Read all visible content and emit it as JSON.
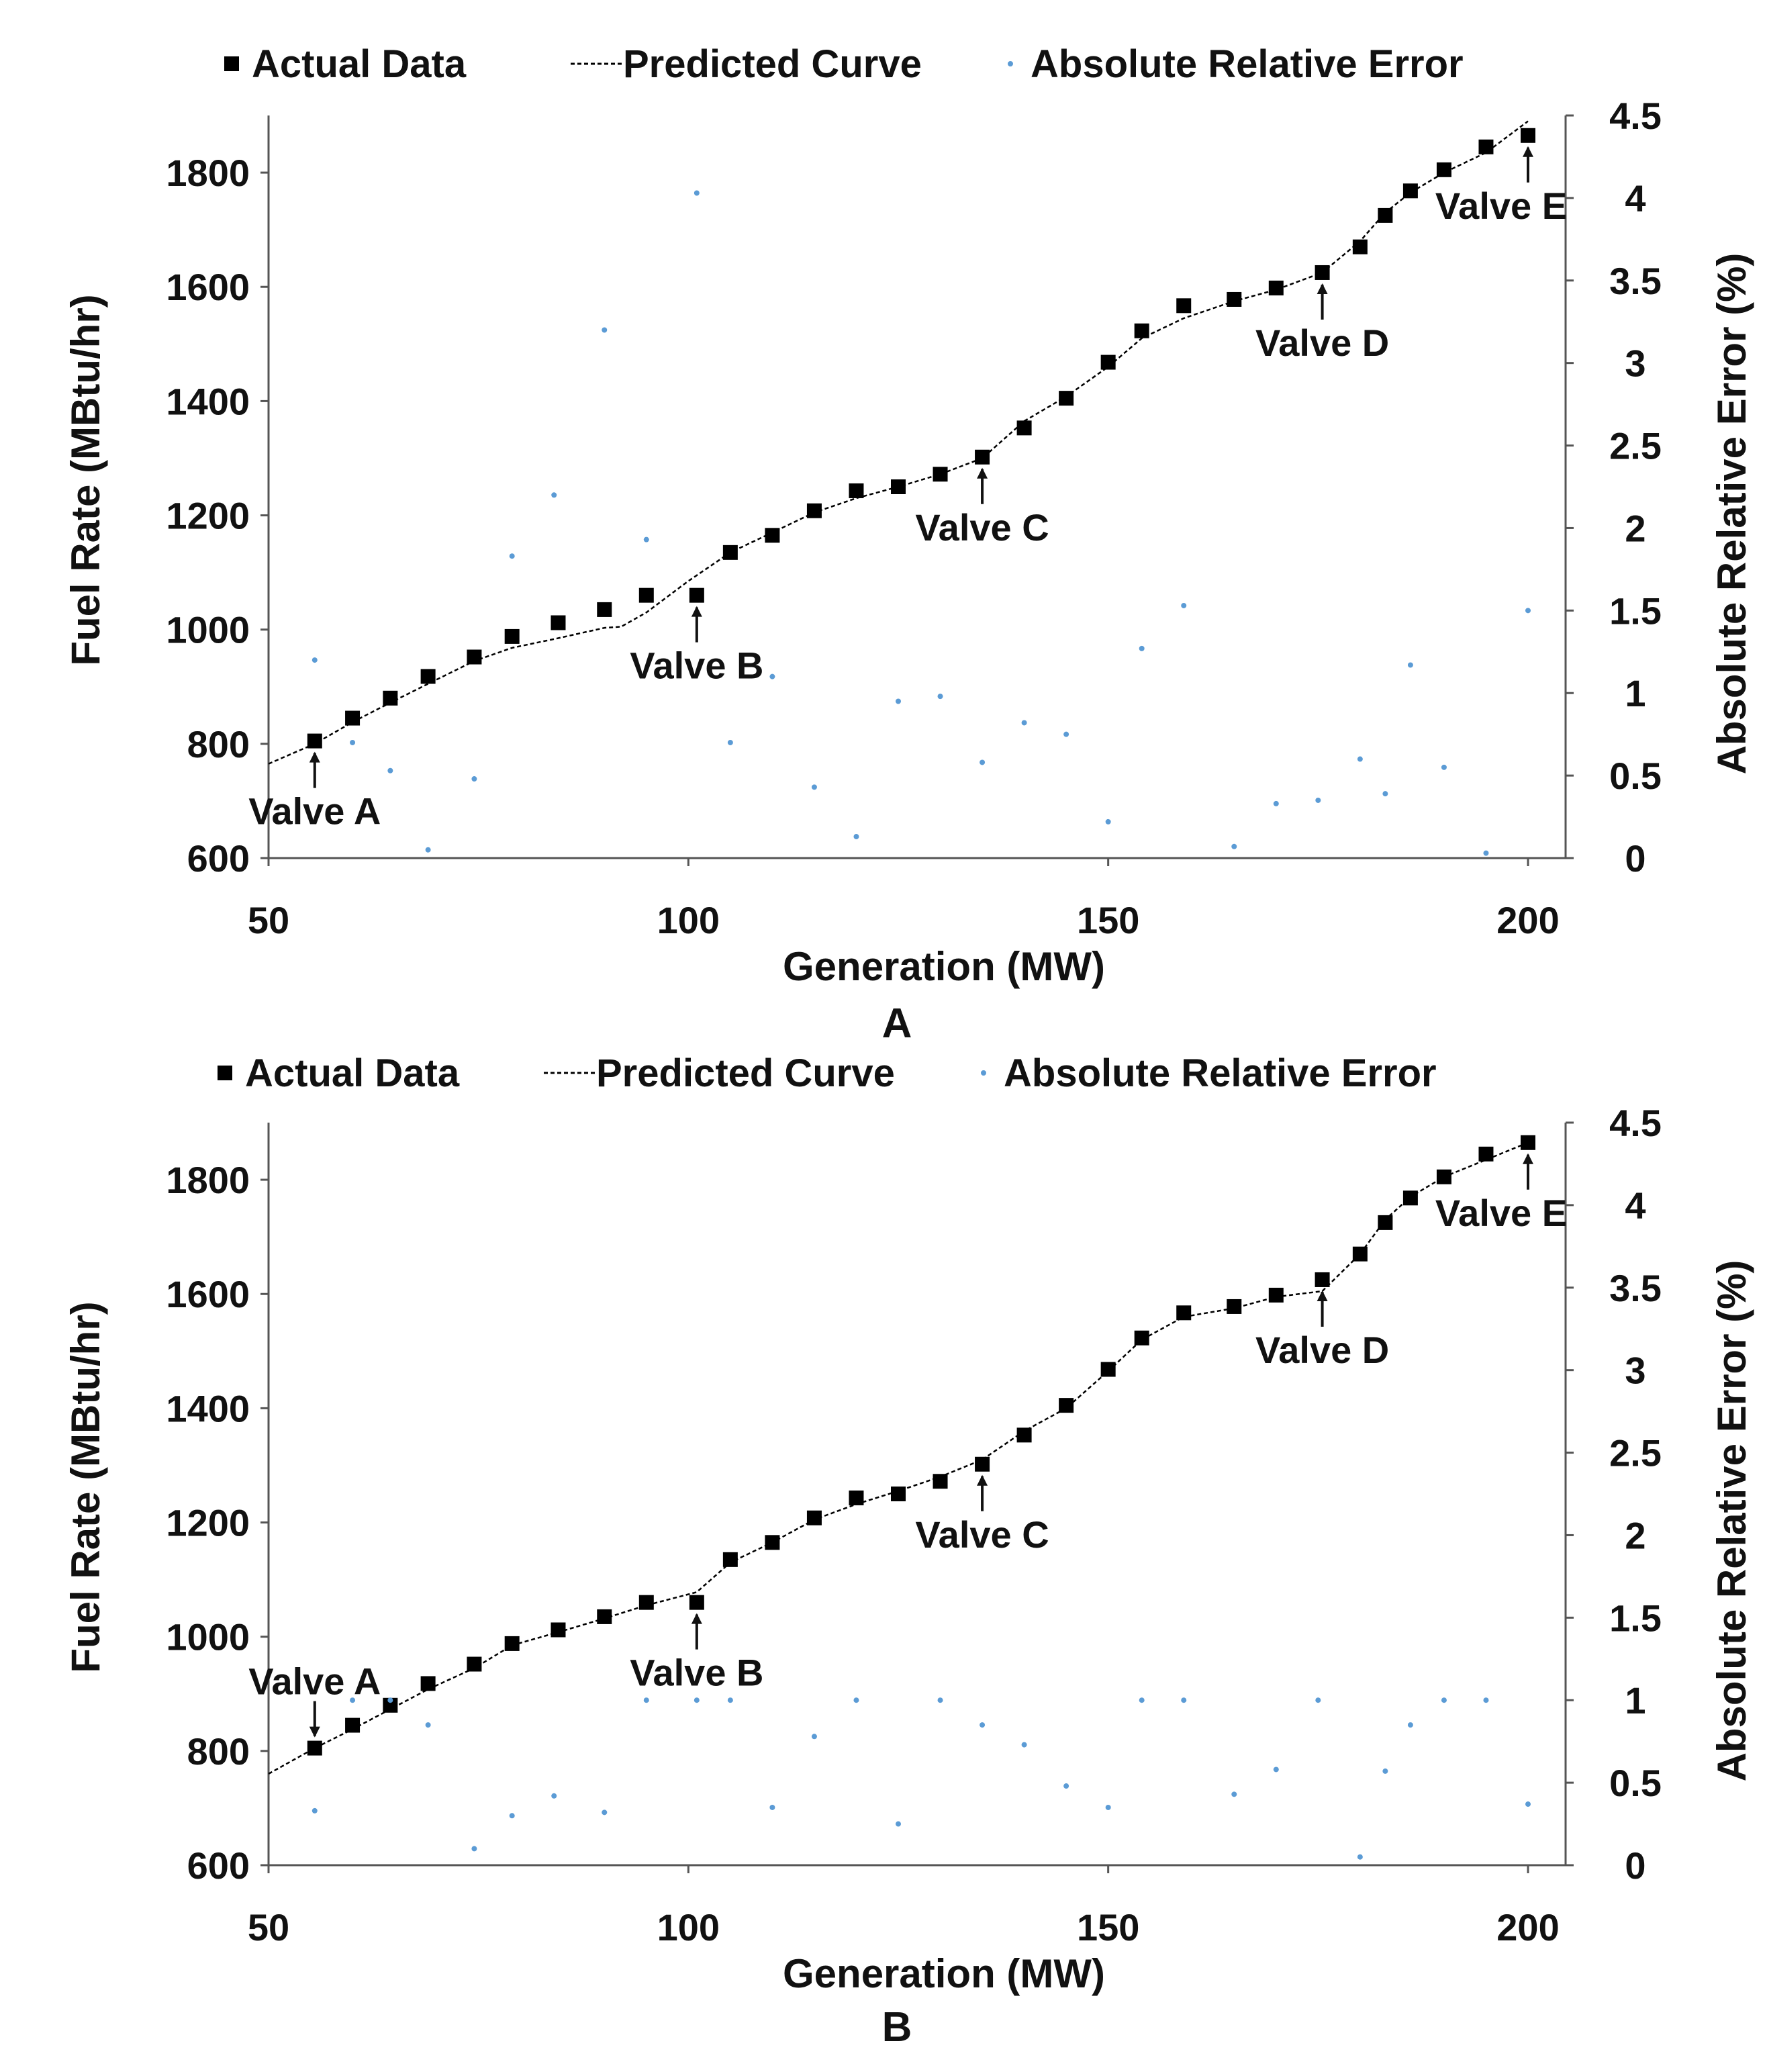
{
  "chart_data": [
    {
      "type": "scatter",
      "panel_label": "A",
      "legend_position": "top",
      "legend": [
        {
          "name": "Actual Data",
          "marker": "square",
          "color": "#000000"
        },
        {
          "name": "Predicted Curve",
          "marker": "dashed-line",
          "color": "#000000"
        },
        {
          "name": "Absolute Relative Error",
          "marker": "dot",
          "color": "#5b9bd5"
        }
      ],
      "xlabel": "Generation (MW)",
      "ylabel": "Fuel Rate (MBtu/hr)",
      "y2label": "Absolute Relative Error (%)",
      "xlim": [
        50,
        205
      ],
      "ylim": [
        600,
        1900
      ],
      "y2lim": [
        0,
        4.5
      ],
      "xticks": [
        50,
        100,
        150,
        200
      ],
      "yticks": [
        600,
        800,
        1000,
        1200,
        1400,
        1600,
        1800
      ],
      "y2ticks": [
        0,
        0.5,
        1,
        1.5,
        2,
        2.5,
        3,
        3.5,
        4,
        4.5
      ],
      "grid": false,
      "series": [
        {
          "name": "Actual Data",
          "x": [
            55.5,
            60,
            64.5,
            69,
            74.5,
            79,
            84.5,
            90,
            95,
            101,
            105,
            110,
            115,
            120,
            125,
            130,
            135,
            140,
            145,
            150,
            154,
            159,
            165,
            170,
            175.5,
            180,
            183,
            186,
            190,
            195,
            200
          ],
          "y": [
            805,
            845,
            880,
            918,
            952,
            988,
            1012,
            1035,
            1060,
            1060,
            1135,
            1165,
            1208,
            1243,
            1250,
            1272,
            1302,
            1353,
            1405,
            1468,
            1523,
            1567,
            1578,
            1598,
            1625,
            1670,
            1725,
            1768,
            1805,
            1845,
            1865
          ]
        },
        {
          "name": "Predicted Curve",
          "x": [
            50,
            55.5,
            60,
            64.5,
            69,
            74.5,
            79,
            84.5,
            90,
            92,
            95,
            100,
            105,
            110,
            115,
            120,
            125,
            130,
            135,
            140,
            145,
            150,
            154,
            159,
            165,
            170,
            175.5,
            180,
            183,
            186,
            190,
            195,
            200
          ],
          "y": [
            765,
            800,
            838,
            872,
            905,
            945,
            968,
            985,
            1003,
            1005,
            1030,
            1085,
            1135,
            1170,
            1205,
            1230,
            1250,
            1272,
            1300,
            1365,
            1408,
            1460,
            1510,
            1545,
            1575,
            1595,
            1625,
            1680,
            1730,
            1765,
            1800,
            1835,
            1890
          ]
        },
        {
          "name": "Absolute Relative Error",
          "axis": "right",
          "x": [
            55.5,
            60,
            64.5,
            69,
            74.5,
            79,
            84,
            90,
            95,
            101,
            105,
            110,
            115,
            120,
            125,
            130,
            135,
            140,
            145,
            150,
            154,
            159,
            165,
            170,
            175,
            180,
            183,
            186,
            190,
            195,
            200
          ],
          "y": [
            1.2,
            0.7,
            0.53,
            0.05,
            0.48,
            1.83,
            2.2,
            3.2,
            1.93,
            4.03,
            0.7,
            1.1,
            0.43,
            0.13,
            0.95,
            0.98,
            0.58,
            0.82,
            0.75,
            0.22,
            1.27,
            1.53,
            0.07,
            0.33,
            0.35,
            0.6,
            0.39,
            1.17,
            0.55,
            0.03,
            1.5
          ]
        }
      ],
      "annotations": [
        {
          "text": "Valve A",
          "x": 55.5,
          "y": 805,
          "arrow": "up"
        },
        {
          "text": "Valve B",
          "x": 101,
          "y": 1060,
          "arrow": "up"
        },
        {
          "text": "Valve C",
          "x": 135,
          "y": 1302,
          "arrow": "up"
        },
        {
          "text": "Valve D",
          "x": 175.5,
          "y": 1625,
          "arrow": "up"
        },
        {
          "text": "Valve E",
          "x": 200,
          "y": 1865,
          "arrow": "up"
        }
      ]
    },
    {
      "type": "scatter",
      "panel_label": "B",
      "legend_position": "top",
      "legend": [
        {
          "name": "Actual Data",
          "marker": "square",
          "color": "#000000"
        },
        {
          "name": "Predicted Curve",
          "marker": "dashed-line",
          "color": "#000000"
        },
        {
          "name": "Absolute Relative Error",
          "marker": "dot",
          "color": "#5b9bd5"
        }
      ],
      "xlabel": "Generation (MW)",
      "ylabel": "Fuel Rate (MBtu/hr)",
      "y2label": "Absolute Relative Error (%)",
      "xlim": [
        50,
        205
      ],
      "ylim": [
        600,
        1900
      ],
      "y2lim": [
        0,
        4.5
      ],
      "xticks": [
        50,
        100,
        150,
        200
      ],
      "yticks": [
        600,
        800,
        1000,
        1200,
        1400,
        1600,
        1800
      ],
      "y2ticks": [
        0,
        0.5,
        1,
        1.5,
        2,
        2.5,
        3,
        3.5,
        4,
        4.5
      ],
      "grid": false,
      "series": [
        {
          "name": "Actual Data",
          "x": [
            55.5,
            60,
            64.5,
            69,
            74.5,
            79,
            84.5,
            90,
            95,
            101,
            105,
            110,
            115,
            120,
            125,
            130,
            135,
            140,
            145,
            150,
            154,
            159,
            165,
            170,
            175.5,
            180,
            183,
            186,
            190,
            195,
            200
          ],
          "y": [
            805,
            845,
            880,
            918,
            952,
            988,
            1012,
            1035,
            1060,
            1060,
            1135,
            1165,
            1208,
            1243,
            1250,
            1272,
            1302,
            1353,
            1405,
            1468,
            1523,
            1567,
            1578,
            1598,
            1625,
            1670,
            1725,
            1768,
            1805,
            1845,
            1865
          ]
        },
        {
          "name": "Predicted Curve",
          "x": [
            50,
            55.5,
            60,
            64.5,
            69,
            74.5,
            79,
            84.5,
            90,
            95,
            101,
            105,
            110,
            115,
            120,
            125,
            130,
            135,
            140,
            145,
            150,
            154,
            159,
            165,
            170,
            175.5,
            180,
            183,
            186,
            190,
            195,
            200
          ],
          "y": [
            760,
            805,
            838,
            873,
            908,
            945,
            985,
            1008,
            1032,
            1055,
            1078,
            1130,
            1165,
            1205,
            1232,
            1255,
            1280,
            1310,
            1360,
            1400,
            1465,
            1520,
            1560,
            1575,
            1595,
            1605,
            1670,
            1730,
            1770,
            1805,
            1835,
            1865
          ]
        },
        {
          "name": "Absolute Relative Error",
          "axis": "right",
          "x": [
            55.5,
            60,
            64.5,
            69,
            74.5,
            79,
            84,
            90,
            95,
            101,
            105,
            110,
            115,
            120,
            125,
            130,
            135,
            140,
            145,
            150,
            154,
            159,
            165,
            170,
            175,
            180,
            183,
            186,
            190,
            195,
            200
          ],
          "y": [
            0.33,
            1.0,
            1.0,
            0.85,
            0.1,
            0.3,
            0.42,
            0.32,
            1.0,
            1.0,
            1.0,
            0.35,
            0.78,
            1.0,
            0.25,
            1.0,
            0.85,
            0.73,
            0.48,
            0.35,
            1.0,
            1.0,
            0.43,
            0.58,
            1.0,
            0.05,
            0.57,
            0.85,
            1.0,
            1.0,
            0.37
          ]
        }
      ],
      "annotations": [
        {
          "text": "Valve A",
          "x": 55.5,
          "y": 805,
          "arrow": "down"
        },
        {
          "text": "Valve B",
          "x": 101,
          "y": 1060,
          "arrow": "up"
        },
        {
          "text": "Valve C",
          "x": 135,
          "y": 1302,
          "arrow": "up"
        },
        {
          "text": "Valve D",
          "x": 175.5,
          "y": 1625,
          "arrow": "up"
        },
        {
          "text": "Valve E",
          "x": 200,
          "y": 1865,
          "arrow": "up"
        }
      ]
    }
  ]
}
